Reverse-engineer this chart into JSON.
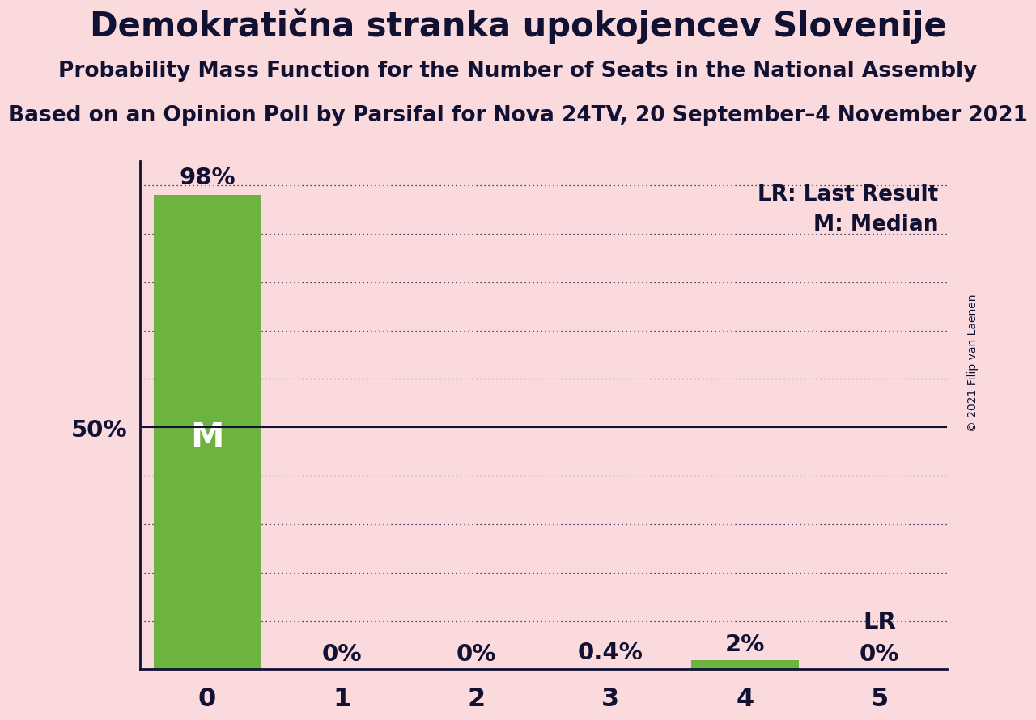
{
  "title": "Demokratična stranka upokojencev Slovenije",
  "subtitle": "Probability Mass Function for the Number of Seats in the National Assembly",
  "subsubtitle": "Based on an Opinion Poll by Parsifal for Nova 24TV, 20 September–4 November 2021",
  "copyright": "© 2021 Filip van Laenen",
  "categories": [
    0,
    1,
    2,
    3,
    4,
    5
  ],
  "values": [
    0.98,
    0.0,
    0.0,
    0.004,
    0.02,
    0.0
  ],
  "bar_labels": [
    "98%",
    "0%",
    "0%",
    "0.4%",
    "2%",
    "0%"
  ],
  "bar_colors": [
    "#6db33f",
    "#fadadd",
    "#fadadd",
    "#fadadd",
    "#6db33f",
    "#fadadd"
  ],
  "median_bar": 0,
  "last_result_bar": 4,
  "background_color": "#fadadd",
  "grid_color": "#111133",
  "axis_color": "#111133",
  "text_color": "#111133",
  "ylim": [
    0,
    1.05
  ],
  "title_fontsize": 30,
  "subtitle_fontsize": 19,
  "subsubtitle_fontsize": 19,
  "label_fontsize": 21,
  "tick_fontsize": 23,
  "legend_fontsize": 19,
  "median_label_fontsize": 30,
  "copyright_fontsize": 10
}
